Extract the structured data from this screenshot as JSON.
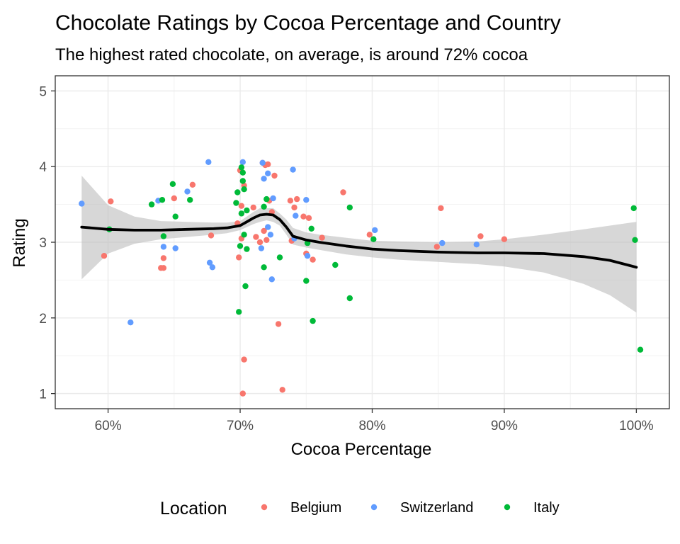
{
  "chart_data": {
    "type": "scatter",
    "title": "Chocolate Ratings by Cocoa Percentage and Country",
    "subtitle": "The highest rated chocolate, on average, is around 72% cocoa",
    "xlabel": "Cocoa Percentage",
    "ylabel": "Rating",
    "xlim": [
      56,
      102.5
    ],
    "ylim": [
      0.8,
      5.2
    ],
    "x_ticks": [
      60,
      70,
      80,
      90,
      100
    ],
    "x_tick_labels": [
      "60%",
      "70%",
      "80%",
      "90%",
      "100%"
    ],
    "y_ticks": [
      1,
      2,
      3,
      4,
      5
    ],
    "y_tick_labels": [
      "1",
      "2",
      "3",
      "4",
      "5"
    ],
    "grid": true,
    "legend": {
      "title": "Location",
      "placement": "bottom"
    },
    "series": [
      {
        "name": "Belgium",
        "color": "#F8766D",
        "x": [
          59.7,
          60.2,
          64.0,
          64.2,
          64.2,
          65.0,
          66.4,
          67.8,
          69.8,
          69.9,
          70.0,
          70.1,
          70.1,
          70.2,
          70.3,
          70.3,
          71.0,
          71.2,
          71.5,
          71.7,
          71.8,
          71.9,
          72.0,
          72.1,
          72.2,
          72.4,
          72.6,
          72.9,
          73.2,
          73.8,
          73.9,
          74.1,
          74.3,
          74.8,
          75.0,
          75.2,
          75.5,
          76.2,
          77.8,
          79.8,
          84.9,
          85.2,
          88.2,
          90.0
        ],
        "y": [
          2.82,
          3.54,
          2.66,
          2.79,
          2.66,
          3.58,
          3.76,
          3.09,
          3.25,
          2.8,
          3.95,
          3.05,
          3.48,
          1.0,
          3.75,
          1.45,
          3.46,
          3.07,
          3.0,
          4.05,
          3.15,
          4.02,
          3.03,
          4.03,
          3.55,
          3.4,
          3.88,
          1.92,
          1.05,
          3.55,
          3.02,
          3.46,
          3.57,
          3.34,
          2.85,
          3.32,
          2.77,
          3.06,
          3.66,
          3.1,
          2.94,
          3.45,
          3.08,
          3.04
        ]
      },
      {
        "name": "Switzerland",
        "color": "#619CFF",
        "x": [
          58.0,
          61.7,
          63.8,
          64.2,
          65.1,
          66.0,
          67.6,
          67.7,
          67.9,
          70.2,
          71.6,
          71.7,
          71.8,
          72.1,
          72.1,
          72.3,
          72.4,
          72.5,
          74.0,
          74.1,
          74.2,
          75.0,
          75.1,
          80.2,
          85.3,
          87.9
        ],
        "y": [
          3.51,
          1.94,
          3.55,
          2.94,
          2.92,
          3.67,
          4.06,
          2.73,
          2.67,
          4.06,
          2.92,
          4.05,
          3.84,
          3.91,
          3.2,
          3.1,
          2.51,
          3.58,
          3.96,
          3.05,
          3.35,
          3.56,
          2.82,
          3.16,
          2.99,
          2.97
        ]
      },
      {
        "name": "Italy",
        "color": "#00BA38",
        "x": [
          60.1,
          63.3,
          64.1,
          64.2,
          64.9,
          65.1,
          66.2,
          69.7,
          69.8,
          69.9,
          70.0,
          70.1,
          70.1,
          70.2,
          70.2,
          70.3,
          70.3,
          70.4,
          70.5,
          70.5,
          71.8,
          71.8,
          72.0,
          73.0,
          75.0,
          75.1,
          75.4,
          75.5,
          77.2,
          78.3,
          78.3,
          80.1,
          99.8,
          99.9,
          100.3
        ],
        "y": [
          3.17,
          3.5,
          3.56,
          3.08,
          3.77,
          3.34,
          3.56,
          3.52,
          3.66,
          2.08,
          2.95,
          3.99,
          3.38,
          3.81,
          3.92,
          3.1,
          3.7,
          2.42,
          2.91,
          3.42,
          2.67,
          3.47,
          3.57,
          2.8,
          2.49,
          2.99,
          3.18,
          1.96,
          2.7,
          3.46,
          2.26,
          3.04,
          3.45,
          3.03,
          1.58
        ]
      }
    ],
    "smooth": {
      "color": "#000000",
      "band_color": "#BEBEBE",
      "x": [
        58,
        60,
        62,
        64,
        66,
        68,
        69,
        70,
        70.5,
        71,
        71.5,
        72,
        72.5,
        73,
        73.5,
        74,
        75,
        76,
        78,
        80,
        82,
        85,
        88,
        90,
        93,
        96,
        98,
        100
      ],
      "y": [
        3.2,
        3.17,
        3.16,
        3.16,
        3.17,
        3.18,
        3.19,
        3.22,
        3.27,
        3.32,
        3.36,
        3.37,
        3.36,
        3.3,
        3.2,
        3.08,
        3.03,
        3.0,
        2.95,
        2.91,
        2.89,
        2.87,
        2.86,
        2.86,
        2.85,
        2.81,
        2.76,
        2.67
      ],
      "ymin": [
        2.51,
        2.85,
        2.98,
        3.04,
        3.07,
        3.1,
        3.12,
        3.16,
        3.2,
        3.24,
        3.27,
        3.29,
        3.27,
        3.22,
        3.1,
        2.97,
        2.93,
        2.9,
        2.84,
        2.8,
        2.77,
        2.74,
        2.71,
        2.68,
        2.6,
        2.45,
        2.3,
        2.07
      ],
      "ymax": [
        3.88,
        3.49,
        3.34,
        3.28,
        3.27,
        3.26,
        3.26,
        3.28,
        3.34,
        3.4,
        3.45,
        3.45,
        3.45,
        3.38,
        3.3,
        3.19,
        3.13,
        3.1,
        3.06,
        3.02,
        3.01,
        3.0,
        3.01,
        3.04,
        3.1,
        3.17,
        3.22,
        3.27
      ]
    }
  }
}
